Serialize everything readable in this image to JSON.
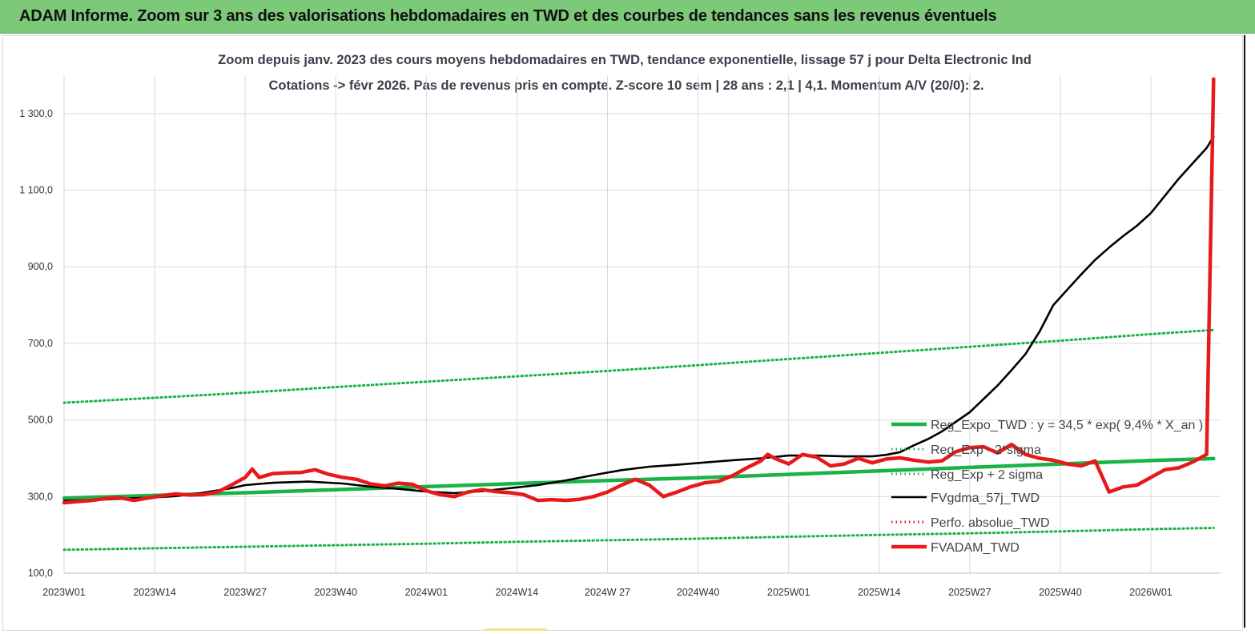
{
  "banner": {
    "title": "ADAM Informe. Zoom sur 3 ans des valorisations hebdomadaires en TWD et des courbes de tendances sans les revenus éventuels"
  },
  "chart_data": {
    "type": "line",
    "title": "Zoom depuis janv. 2023 des cours moyens hebdomadaires en TWD, tendance exponentielle, lissage 57 j pour Delta Electronic Ind",
    "subtitle": "Cotations -> févr 2026. Pas de revenus pris en compte. Z-score 10 sem | 28 ans : 2,1 | 4,1. Momentum A/V (20/0): 2.",
    "xlabel": "",
    "ylabel": "",
    "ylim": [
      100,
      1400
    ],
    "xlim": [
      0,
      166
    ],
    "grid": true,
    "legend_position": "right",
    "y_ticks": [
      "100,0",
      "300,0",
      "500,0",
      "700,0",
      "900,0",
      "1 100,0",
      "1 300,0"
    ],
    "y_tick_values": [
      100,
      300,
      500,
      700,
      900,
      1100,
      1300
    ],
    "x_ticks": [
      "2023W01",
      "2023W14",
      "2023W27",
      "2023W40",
      "2024W01",
      "2024W14",
      "2024W 27",
      "2024W40",
      "2025W01",
      "2025W14",
      "2025W27",
      "2025W40",
      "2026W01"
    ],
    "x_tick_values": [
      0,
      13,
      26,
      39,
      52,
      65,
      78,
      91,
      104,
      117,
      130,
      143,
      156
    ],
    "colors": {
      "trend": "#19b347",
      "band": "#19b347",
      "gdma": "#000000",
      "adam": "#e8191a",
      "perfo": "#e8191a",
      "grid": "#d9d9d9"
    },
    "series": [
      {
        "name": "Reg_Expo_TWD : y = 34,5 * exp( 9,4% *  X_an )",
        "style": "thick-solid",
        "color": "#19b347",
        "points": [
          [
            0,
            296
          ],
          [
            13,
            303
          ],
          [
            26,
            310
          ],
          [
            39,
            318
          ],
          [
            52,
            326
          ],
          [
            65,
            334
          ],
          [
            78,
            342
          ],
          [
            91,
            349
          ],
          [
            104,
            358
          ],
          [
            117,
            367
          ],
          [
            130,
            376
          ],
          [
            143,
            385
          ],
          [
            156,
            394
          ],
          [
            165,
            399
          ]
        ]
      },
      {
        "name": "Reg_Exp - 2*sigma",
        "style": "dotted",
        "color": "#19b347",
        "points": [
          [
            0,
            161
          ],
          [
            13,
            165
          ],
          [
            26,
            169
          ],
          [
            39,
            173
          ],
          [
            52,
            177
          ],
          [
            65,
            182
          ],
          [
            78,
            186
          ],
          [
            91,
            190
          ],
          [
            104,
            195
          ],
          [
            117,
            200
          ],
          [
            130,
            204
          ],
          [
            143,
            209
          ],
          [
            156,
            215
          ],
          [
            165,
            218
          ]
        ]
      },
      {
        "name": "Reg_Exp + 2 sigma",
        "style": "dotted",
        "color": "#19b347",
        "points": [
          [
            0,
            545
          ],
          [
            13,
            558
          ],
          [
            26,
            571
          ],
          [
            39,
            586
          ],
          [
            52,
            600
          ],
          [
            65,
            614
          ],
          [
            78,
            628
          ],
          [
            91,
            643
          ],
          [
            104,
            659
          ],
          [
            117,
            675
          ],
          [
            130,
            691
          ],
          [
            143,
            707
          ],
          [
            156,
            724
          ],
          [
            165,
            735
          ]
        ]
      },
      {
        "name": "FVgdma_57j_TWD",
        "style": "solid",
        "color": "#000000",
        "points": [
          [
            0,
            289
          ],
          [
            4,
            291
          ],
          [
            8,
            294
          ],
          [
            12,
            297
          ],
          [
            16,
            301
          ],
          [
            20,
            310
          ],
          [
            24,
            322
          ],
          [
            26,
            330
          ],
          [
            30,
            336
          ],
          [
            35,
            339
          ],
          [
            40,
            334
          ],
          [
            44,
            326
          ],
          [
            48,
            320
          ],
          [
            52,
            313
          ],
          [
            56,
            309
          ],
          [
            60,
            314
          ],
          [
            64,
            322
          ],
          [
            68,
            330
          ],
          [
            72,
            342
          ],
          [
            76,
            356
          ],
          [
            80,
            369
          ],
          [
            84,
            378
          ],
          [
            88,
            383
          ],
          [
            92,
            389
          ],
          [
            96,
            395
          ],
          [
            100,
            400
          ],
          [
            104,
            407
          ],
          [
            108,
            407
          ],
          [
            112,
            405
          ],
          [
            116,
            405
          ],
          [
            118,
            409
          ],
          [
            120,
            416
          ],
          [
            122,
            434
          ],
          [
            124,
            450
          ],
          [
            126,
            470
          ],
          [
            128,
            495
          ],
          [
            130,
            520
          ],
          [
            132,
            555
          ],
          [
            134,
            590
          ],
          [
            136,
            630
          ],
          [
            138,
            672
          ],
          [
            140,
            730
          ],
          [
            142,
            800
          ],
          [
            144,
            840
          ],
          [
            146,
            880
          ],
          [
            148,
            918
          ],
          [
            150,
            950
          ],
          [
            152,
            980
          ],
          [
            154,
            1007
          ],
          [
            156,
            1040
          ],
          [
            158,
            1085
          ],
          [
            160,
            1130
          ],
          [
            162,
            1170
          ],
          [
            164,
            1210
          ],
          [
            165,
            1240
          ]
        ]
      },
      {
        "name": "Perfo. absolue_TWD",
        "style": "dotted",
        "color": "#e8191a",
        "points": []
      },
      {
        "name": "FVADAM_TWD",
        "style": "thick-solid",
        "color": "#e8191a",
        "points": [
          [
            0,
            284
          ],
          [
            2,
            287
          ],
          [
            4,
            290
          ],
          [
            6,
            295
          ],
          [
            8,
            297
          ],
          [
            10,
            290
          ],
          [
            12,
            296
          ],
          [
            14,
            302
          ],
          [
            16,
            307
          ],
          [
            18,
            304
          ],
          [
            20,
            305
          ],
          [
            22,
            312
          ],
          [
            24,
            330
          ],
          [
            26,
            350
          ],
          [
            27,
            372
          ],
          [
            28,
            350
          ],
          [
            30,
            360
          ],
          [
            32,
            362
          ],
          [
            34,
            363
          ],
          [
            36,
            370
          ],
          [
            38,
            358
          ],
          [
            40,
            350
          ],
          [
            42,
            345
          ],
          [
            44,
            333
          ],
          [
            46,
            328
          ],
          [
            48,
            335
          ],
          [
            50,
            332
          ],
          [
            52,
            315
          ],
          [
            54,
            305
          ],
          [
            56,
            300
          ],
          [
            58,
            312
          ],
          [
            60,
            318
          ],
          [
            62,
            313
          ],
          [
            64,
            310
          ],
          [
            66,
            305
          ],
          [
            68,
            290
          ],
          [
            70,
            292
          ],
          [
            72,
            290
          ],
          [
            74,
            293
          ],
          [
            76,
            300
          ],
          [
            78,
            312
          ],
          [
            80,
            330
          ],
          [
            82,
            345
          ],
          [
            84,
            330
          ],
          [
            86,
            300
          ],
          [
            88,
            312
          ],
          [
            90,
            326
          ],
          [
            92,
            336
          ],
          [
            94,
            340
          ],
          [
            96,
            355
          ],
          [
            98,
            375
          ],
          [
            100,
            393
          ],
          [
            101,
            410
          ],
          [
            102,
            400
          ],
          [
            104,
            385
          ],
          [
            106,
            410
          ],
          [
            108,
            403
          ],
          [
            110,
            380
          ],
          [
            112,
            385
          ],
          [
            114,
            400
          ],
          [
            116,
            388
          ],
          [
            118,
            398
          ],
          [
            120,
            401
          ],
          [
            122,
            395
          ],
          [
            124,
            390
          ],
          [
            126,
            393
          ],
          [
            128,
            417
          ],
          [
            130,
            428
          ],
          [
            132,
            430
          ],
          [
            134,
            414
          ],
          [
            136,
            436
          ],
          [
            138,
            410
          ],
          [
            140,
            400
          ],
          [
            142,
            395
          ],
          [
            144,
            385
          ],
          [
            146,
            380
          ],
          [
            148,
            393
          ],
          [
            150,
            312
          ],
          [
            152,
            325
          ],
          [
            154,
            330
          ],
          [
            156,
            350
          ],
          [
            158,
            370
          ],
          [
            160,
            375
          ],
          [
            162,
            390
          ],
          [
            164,
            410
          ],
          [
            165,
            1390
          ]
        ]
      }
    ]
  },
  "legend": {
    "items": [
      "Reg_Expo_TWD : y = 34,5 * exp( 9,4% *  X_an )",
      "Reg_Exp - 2*sigma",
      "Reg_Exp + 2 sigma",
      "FVgdma_57j_TWD",
      "Perfo. absolue_TWD",
      "FVADAM_TWD"
    ]
  }
}
